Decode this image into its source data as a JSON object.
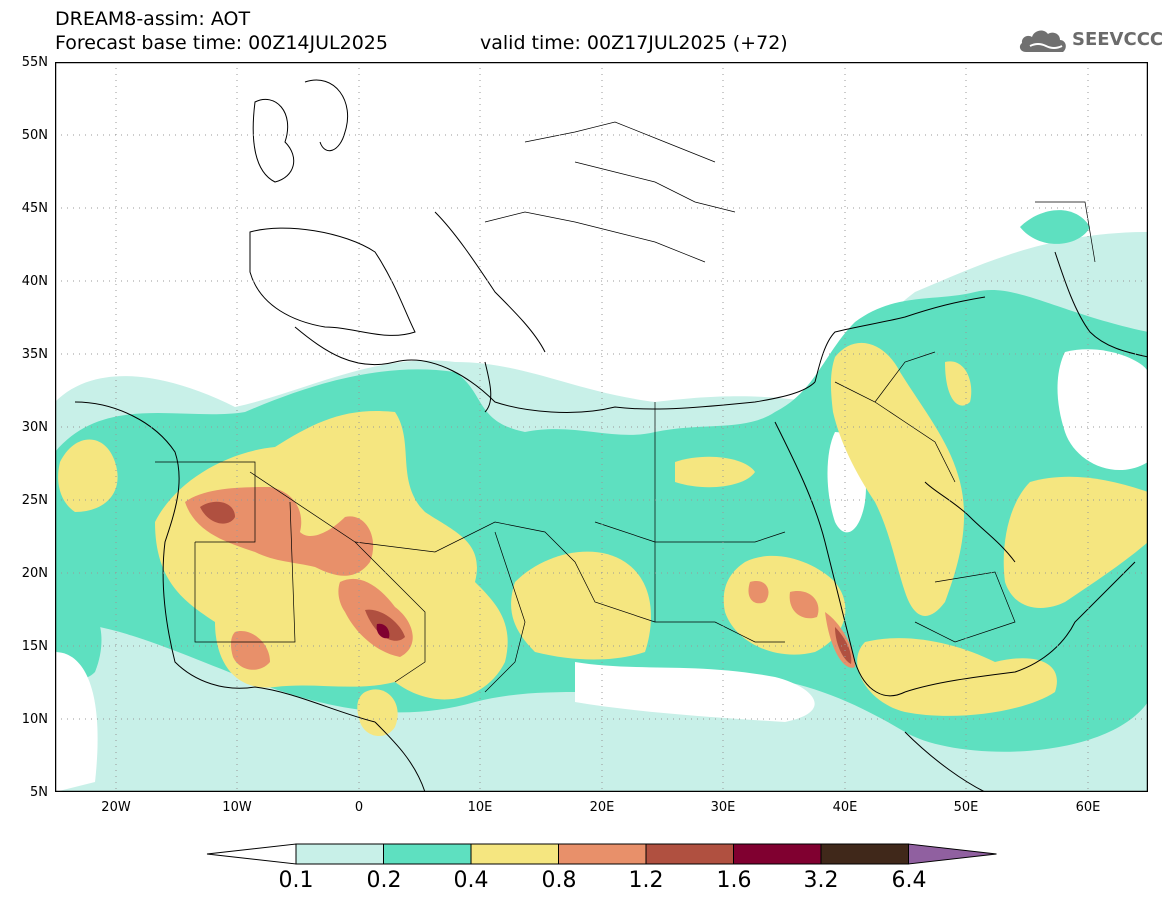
{
  "header": {
    "title_line1": "DREAM8-assim: AOT",
    "title_line2": "Forecast base time: 00Z14JUL2025",
    "valid_time": "valid time: 00Z17JUL2025 (+72)"
  },
  "logo": {
    "text": "SEEVCCC"
  },
  "map": {
    "lat_labels": [
      "55N",
      "50N",
      "45N",
      "40N",
      "35N",
      "30N",
      "25N",
      "20N",
      "15N",
      "10N",
      "5N"
    ],
    "lon_labels": [
      "20W",
      "10W",
      "0",
      "10E",
      "20E",
      "30E",
      "40E",
      "50E",
      "60E"
    ]
  },
  "colorbar": {
    "levels": [
      "0.1",
      "0.2",
      "0.4",
      "0.8",
      "1.2",
      "1.6",
      "3.2",
      "6.4"
    ],
    "colors": [
      "#ffffff",
      "#c8f0e8",
      "#5ee0c0",
      "#f5e680",
      "#e8906a",
      "#b05040",
      "#800030",
      "#40281a",
      "#9060a0"
    ]
  }
}
